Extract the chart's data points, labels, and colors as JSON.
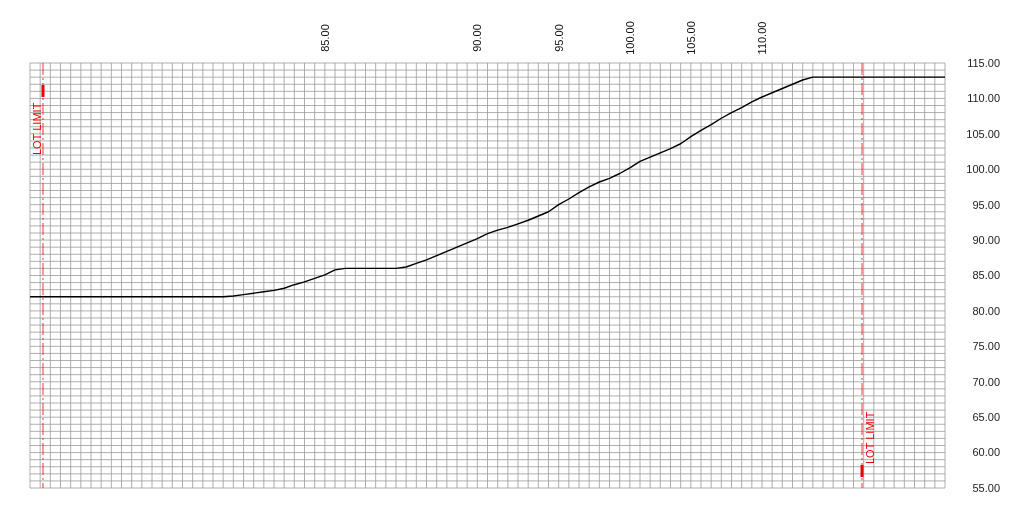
{
  "chart_data": {
    "type": "line",
    "categories": [
      null,
      null,
      null,
      null,
      null,
      null,
      null,
      null,
      null,
      null,
      null,
      null,
      null,
      null,
      null,
      null,
      null,
      null,
      null,
      null,
      null,
      null,
      null,
      null,
      null,
      null,
      null,
      null,
      null,
      "85.00",
      null,
      null,
      null,
      null,
      null,
      null,
      null,
      null,
      null,
      null,
      null,
      null,
      null,
      null,
      "90.00",
      null,
      null,
      null,
      null,
      null,
      null,
      null,
      "95.00",
      null,
      null,
      null,
      null,
      null,
      null,
      "100.00",
      null,
      null,
      null,
      null,
      null,
      "105.00",
      null,
      null,
      null,
      null,
      null,
      null,
      "110.00",
      null,
      null,
      null,
      null,
      null,
      null,
      null,
      null,
      null,
      null,
      null,
      null,
      null,
      null,
      null,
      null,
      null,
      null
    ],
    "series": [
      {
        "color": "#000000",
        "values": [
          82,
          82,
          82,
          82,
          82,
          82,
          82,
          82,
          82,
          82,
          82,
          82,
          82,
          82,
          82,
          82,
          82,
          82,
          82,
          82,
          82.1,
          82.3,
          82.5,
          82.7,
          82.9,
          83.2,
          83.7,
          84.1,
          84.6,
          85.1,
          85.8,
          86,
          86,
          86,
          86,
          86,
          86,
          86.2,
          86.7,
          87.2,
          87.8,
          88.4,
          89.0,
          89.6,
          90.2,
          90.9,
          91.4,
          91.8,
          92.3,
          92.8,
          93.4,
          94.0,
          95.0,
          95.8,
          96.7,
          97.5,
          98.2,
          98.7,
          99.4,
          100.2,
          101.1,
          101.7,
          102.3,
          102.9,
          103.6,
          104.6,
          105.5,
          106.3,
          107.2,
          108.0,
          108.7,
          109.5,
          110.2,
          110.8,
          111.4,
          112.0,
          112.6,
          113,
          113,
          113,
          113,
          113,
          113,
          113,
          113,
          113,
          113,
          113,
          113,
          113,
          113
        ]
      }
    ],
    "ylim": [
      55,
      115
    ],
    "yticks": [
      {
        "value": 55,
        "label": "55.00"
      },
      {
        "value": 56,
        "label": null
      },
      {
        "value": 57,
        "label": null
      },
      {
        "value": 58,
        "label": null
      },
      {
        "value": 59,
        "label": null
      },
      {
        "value": 60,
        "label": "60.00"
      },
      {
        "value": 61,
        "label": null
      },
      {
        "value": 62,
        "label": null
      },
      {
        "value": 63,
        "label": null
      },
      {
        "value": 64,
        "label": null
      },
      {
        "value": 65,
        "label": "65.00"
      },
      {
        "value": 66,
        "label": null
      },
      {
        "value": 67,
        "label": null
      },
      {
        "value": 68,
        "label": null
      },
      {
        "value": 69,
        "label": null
      },
      {
        "value": 70,
        "label": "70.00"
      },
      {
        "value": 71,
        "label": null
      },
      {
        "value": 72,
        "label": null
      },
      {
        "value": 73,
        "label": null
      },
      {
        "value": 74,
        "label": null
      },
      {
        "value": 75,
        "label": "75.00"
      },
      {
        "value": 76,
        "label": null
      },
      {
        "value": 77,
        "label": null
      },
      {
        "value": 78,
        "label": null
      },
      {
        "value": 79,
        "label": null
      },
      {
        "value": 80,
        "label": "80.00"
      },
      {
        "value": 81,
        "label": null
      },
      {
        "value": 82,
        "label": null
      },
      {
        "value": 83,
        "label": null
      },
      {
        "value": 84,
        "label": null
      },
      {
        "value": 85,
        "label": "85.00"
      },
      {
        "value": 86,
        "label": null
      },
      {
        "value": 87,
        "label": null
      },
      {
        "value": 88,
        "label": null
      },
      {
        "value": 89,
        "label": null
      },
      {
        "value": 90,
        "label": "90.00"
      },
      {
        "value": 91,
        "label": null
      },
      {
        "value": 92,
        "label": null
      },
      {
        "value": 93,
        "label": null
      },
      {
        "value": 94,
        "label": null
      },
      {
        "value": 95,
        "label": "95.00"
      },
      {
        "value": 96,
        "label": null
      },
      {
        "value": 97,
        "label": null
      },
      {
        "value": 98,
        "label": null
      },
      {
        "value": 99,
        "label": null
      },
      {
        "value": 100,
        "label": "100.00"
      },
      {
        "value": 101,
        "label": null
      },
      {
        "value": 102,
        "label": null
      },
      {
        "value": 103,
        "label": null
      },
      {
        "value": 104,
        "label": null
      },
      {
        "value": 105,
        "label": "105.00"
      },
      {
        "value": 106,
        "label": null
      },
      {
        "value": 107,
        "label": null
      },
      {
        "value": 108,
        "label": null
      },
      {
        "value": 109,
        "label": null
      },
      {
        "value": 110,
        "label": "110.00"
      },
      {
        "value": 111,
        "label": null
      },
      {
        "value": 112,
        "label": null
      },
      {
        "value": 113,
        "label": null
      },
      {
        "value": 114,
        "label": null
      },
      {
        "value": 115,
        "label": "115.00"
      }
    ],
    "grid": true,
    "marker": "none",
    "line_style": "solid",
    "annotations": [
      "LOT LIMIT",
      "LOT LIMIT"
    ]
  }
}
